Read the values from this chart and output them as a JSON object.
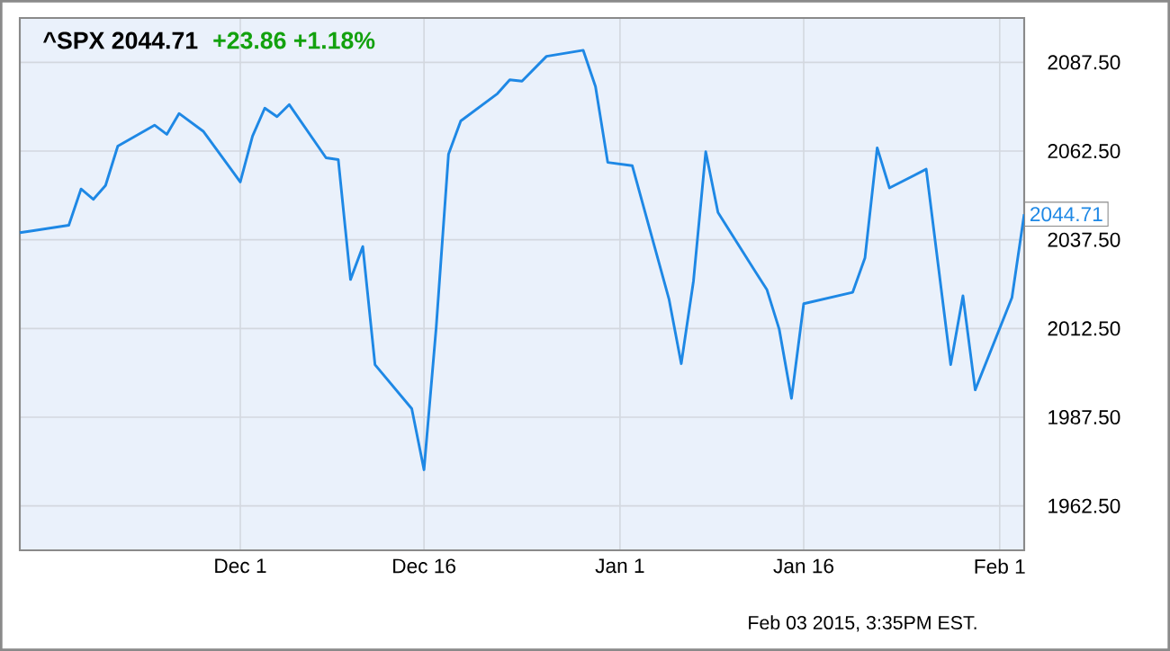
{
  "chart_data": {
    "type": "line",
    "title": "^SPX  2044.71",
    "subtitle": "+23.86  +1.18%",
    "x": [
      "2014-11-13",
      "2014-11-14",
      "2014-11-17",
      "2014-11-18",
      "2014-11-19",
      "2014-11-20",
      "2014-11-21",
      "2014-11-24",
      "2014-11-25",
      "2014-11-26",
      "2014-11-28",
      "2014-12-01",
      "2014-12-02",
      "2014-12-03",
      "2014-12-04",
      "2014-12-05",
      "2014-12-08",
      "2014-12-09",
      "2014-12-10",
      "2014-12-11",
      "2014-12-12",
      "2014-12-15",
      "2014-12-16",
      "2014-12-17",
      "2014-12-18",
      "2014-12-19",
      "2014-12-22",
      "2014-12-23",
      "2014-12-24",
      "2014-12-26",
      "2014-12-29",
      "2014-12-30",
      "2014-12-31",
      "2015-01-02",
      "2015-01-05",
      "2015-01-06",
      "2015-01-07",
      "2015-01-08",
      "2015-01-09",
      "2015-01-12",
      "2015-01-13",
      "2015-01-14",
      "2015-01-15",
      "2015-01-16",
      "2015-01-20",
      "2015-01-21",
      "2015-01-22",
      "2015-01-23",
      "2015-01-26",
      "2015-01-27",
      "2015-01-28",
      "2015-01-29",
      "2015-01-30",
      "2015-02-02",
      "2015-02-03"
    ],
    "series": [
      {
        "color": "#1e88e5",
        "values": [
          2039.5,
          2040,
          2041.6,
          2051.8,
          2048.9,
          2052.8,
          2063.9,
          2069.8,
          2067.2,
          2073.1,
          2068,
          2053.8,
          2066.7,
          2074.6,
          2072.2,
          2075.6,
          2060.6,
          2060.1,
          2026.3,
          2035.6,
          2002.3,
          1989.9,
          1972.7,
          2013,
          2061.6,
          2071,
          2078.7,
          2082.6,
          2082.2,
          2089.2,
          2090.9,
          2080.7,
          2059.3,
          2058.4,
          2020.8,
          2002.6,
          2025.9,
          2062.3,
          2045.2,
          2028.8,
          2023.4,
          2012.3,
          1992.8,
          2019.5,
          2022.7,
          2032.4,
          2063.4,
          2052.1,
          2057.4,
          2029.8,
          2002.3,
          2021.7,
          1995.2,
          2021.2,
          2044.71
        ]
      }
    ],
    "xlim": [
      "2014-11-13",
      "2015-02-03"
    ],
    "xticks": [
      {
        "value": "2014-12-01",
        "label": "Dec 1"
      },
      {
        "value": "2014-12-16",
        "label": "Dec 16"
      },
      {
        "value": "2015-01-01",
        "label": "Jan 1"
      },
      {
        "value": "2015-01-16",
        "label": "Jan 16"
      },
      {
        "value": "2015-02-01",
        "label": "Feb 1"
      }
    ],
    "ylim": [
      1950,
      2100
    ],
    "yticks": [
      {
        "value": 1962.5,
        "label": "1962.50"
      },
      {
        "value": 1987.5,
        "label": "1987.50"
      },
      {
        "value": 2012.5,
        "label": "2012.50"
      },
      {
        "value": 2037.5,
        "label": "2037.50"
      },
      {
        "value": 2062.5,
        "label": "2062.50"
      },
      {
        "value": 2087.5,
        "label": "2087.50"
      }
    ],
    "grid": true,
    "annotations": [
      {
        "text": "2044.71",
        "x": "2015-02-03",
        "y": 2044.71
      },
      "Feb 03 2015, 3:35PM EST."
    ]
  }
}
